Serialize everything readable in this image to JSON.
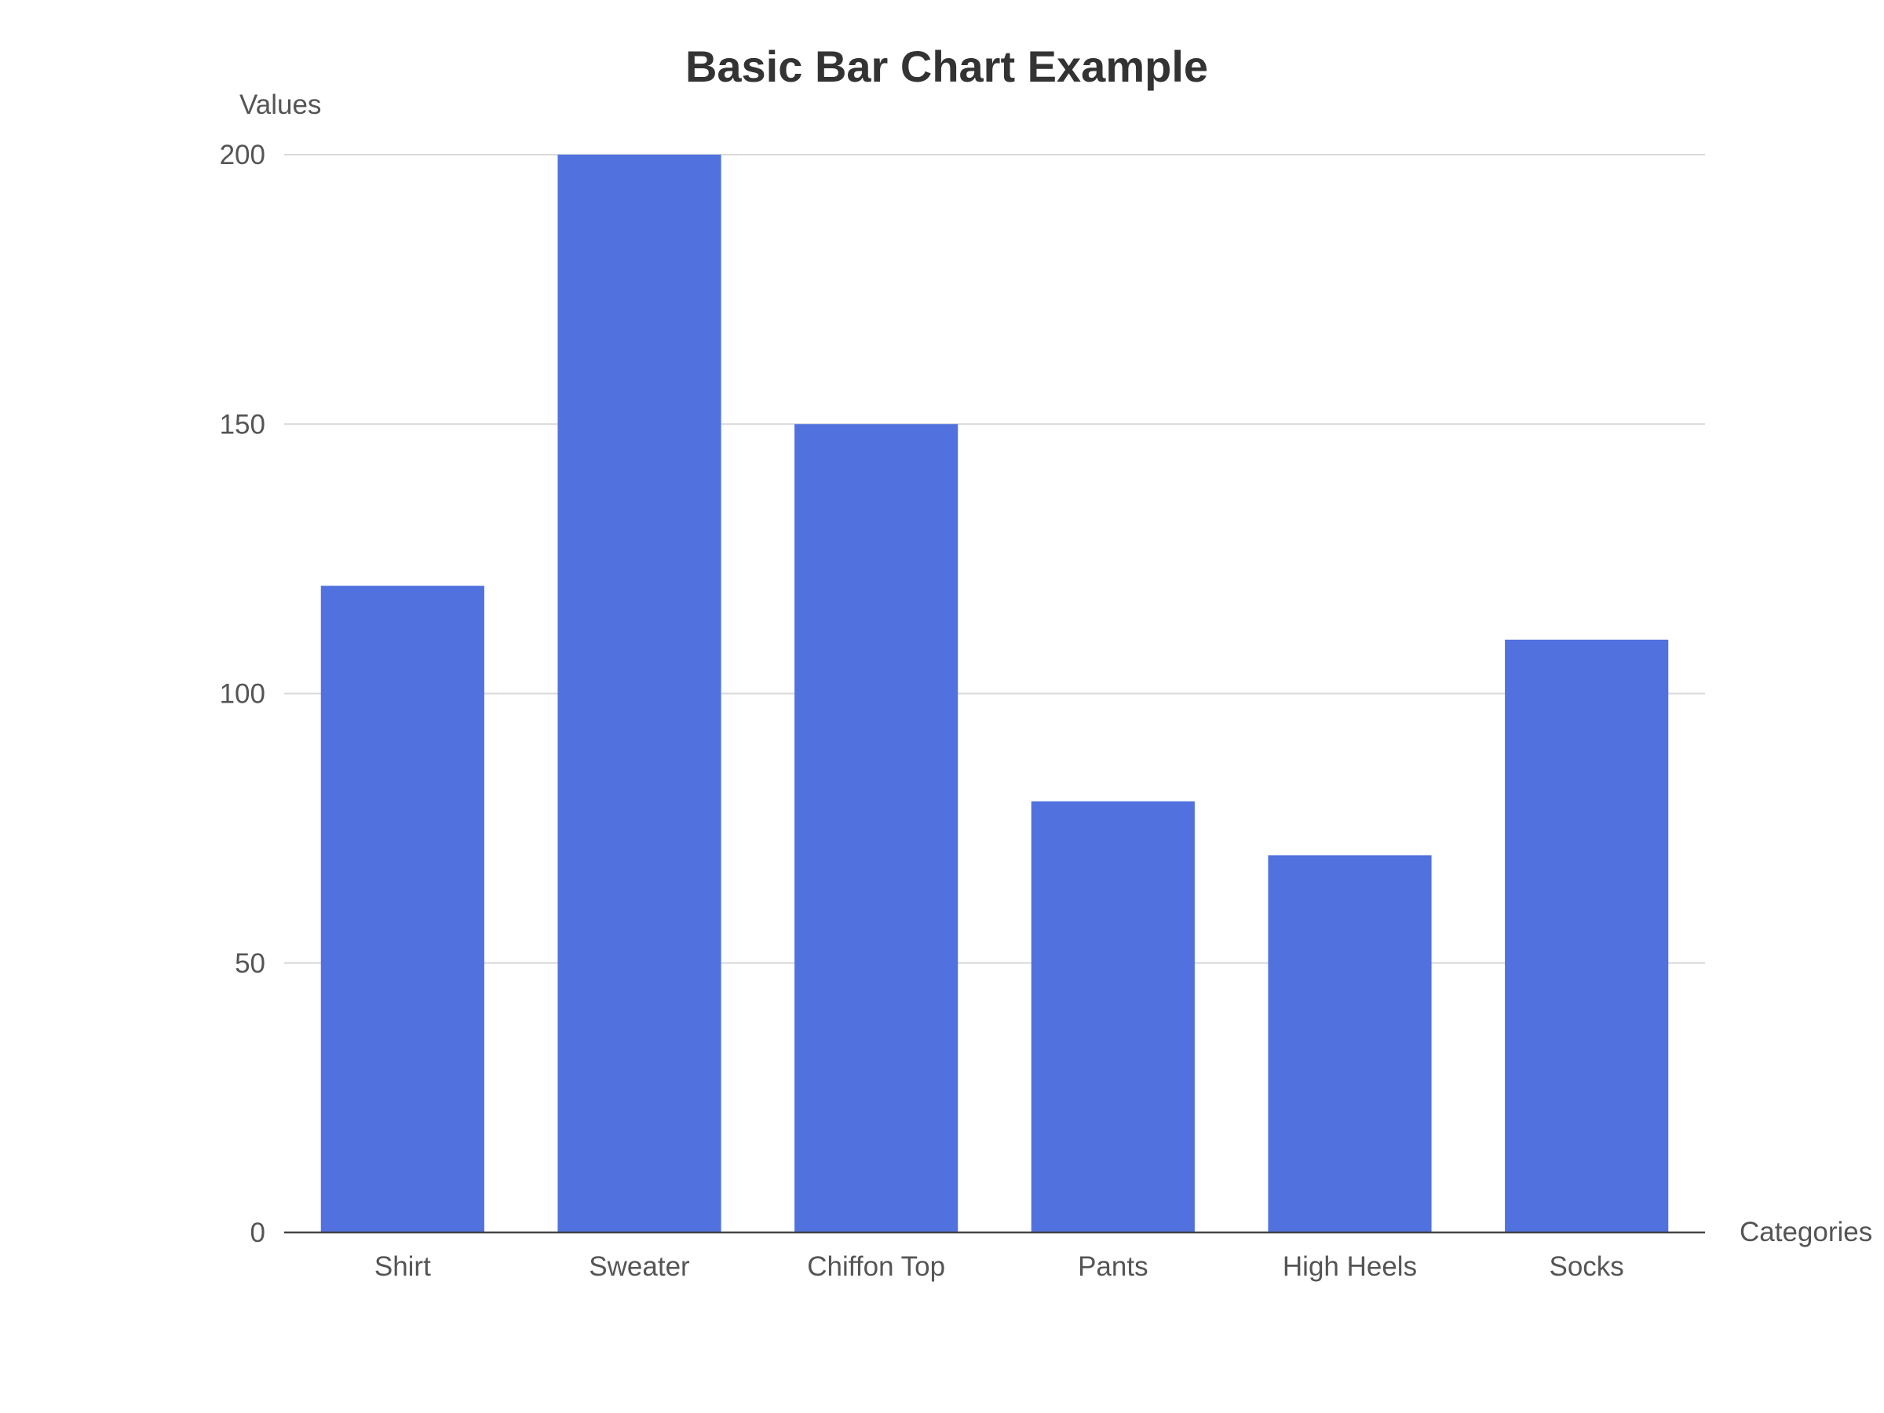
{
  "chart_data": {
    "type": "bar",
    "title": "Basic Bar Chart Example",
    "xlabel": "Categories",
    "ylabel": "Values",
    "categories": [
      "Shirt",
      "Sweater",
      "Chiffon Top",
      "Pants",
      "High Heels",
      "Socks"
    ],
    "values": [
      120,
      200,
      150,
      80,
      70,
      110
    ],
    "ylim": [
      0,
      200
    ],
    "yticks": [
      0,
      50,
      100,
      150,
      200
    ],
    "grid": true,
    "legend": "none",
    "bar_color": "#5071de"
  }
}
